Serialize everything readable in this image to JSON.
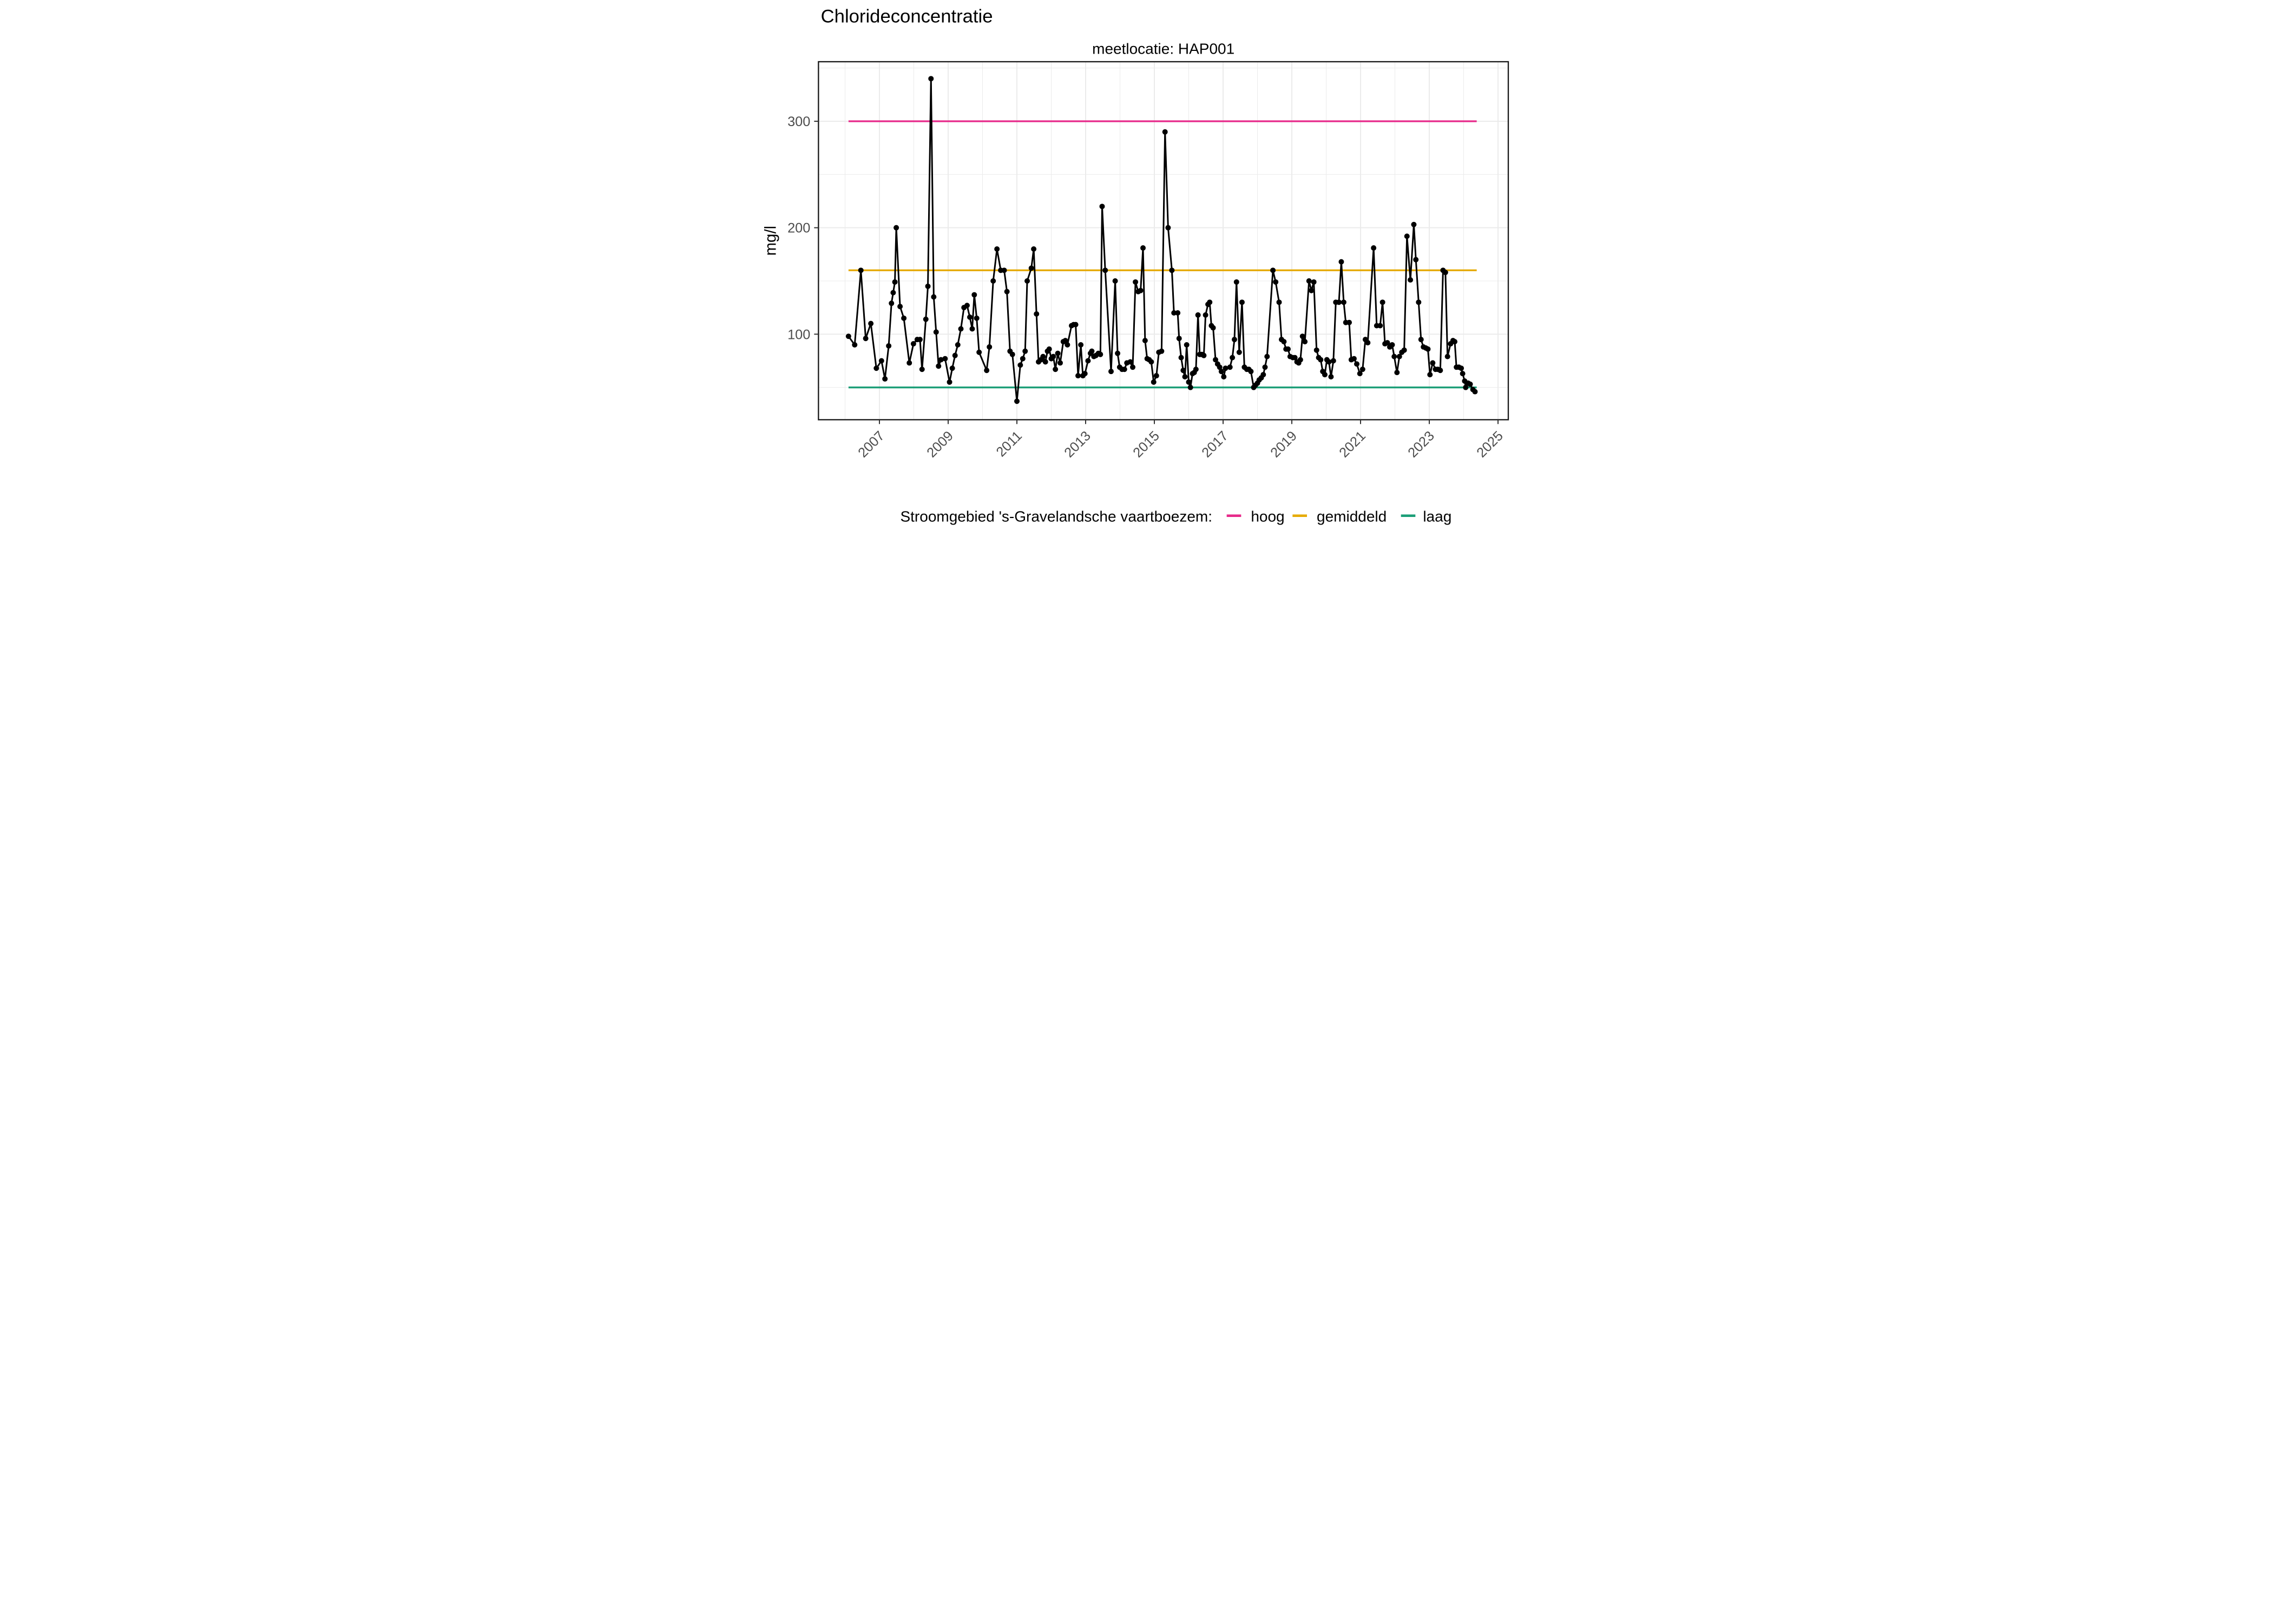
{
  "title": "Chlorideconcentratie",
  "subtitle": "meetlocatie: HAP001",
  "y_axis_label": "mg/l",
  "legend": {
    "title": "Stroomgebied 's-Gravelandsche vaartboezem:",
    "items": [
      {
        "label": "hoog",
        "color": "#E7298A",
        "value": 300
      },
      {
        "label": "gemiddeld",
        "color": "#E6AB02",
        "value": 160
      },
      {
        "label": "laag",
        "color": "#1B9E77",
        "value": 50
      }
    ]
  },
  "colors": {
    "point_line": "#000000",
    "grid": "#ebebeb",
    "tick_text": "#4d4d4d",
    "panel_border": "#1a1a1a",
    "background": "#ffffff"
  },
  "chart_data": {
    "type": "line",
    "title": "Chlorideconcentratie",
    "subtitle": "meetlocatie: HAP001",
    "xlabel": "",
    "ylabel": "mg/l",
    "xlim": [
      2005.2,
      2025.3
    ],
    "ylim": [
      22,
      356
    ],
    "x_ticks": [
      2007,
      2009,
      2011,
      2013,
      2015,
      2017,
      2019,
      2021,
      2023,
      2025
    ],
    "x_minor_gridlines": [
      2006,
      2008,
      2010,
      2012,
      2014,
      2016,
      2018,
      2020,
      2022,
      2024
    ],
    "y_ticks": [
      100,
      200,
      300
    ],
    "y_minor_gridlines": [
      50,
      150,
      250,
      350
    ],
    "grid": "on",
    "legend_position": "bottom",
    "reference_span": [
      2006.1,
      2024.38
    ],
    "reference_lines": [
      {
        "name": "hoog",
        "value": 300,
        "color": "#E7298A"
      },
      {
        "name": "gemiddeld",
        "value": 160,
        "color": "#E6AB02"
      },
      {
        "name": "laag",
        "value": 50,
        "color": "#1B9E77"
      }
    ],
    "series": [
      {
        "name": "chlorideconcentratie HAP001",
        "type": "line+points",
        "color": "#000000",
        "points": [
          [
            2006.1,
            98
          ],
          [
            2006.28,
            90
          ],
          [
            2006.46,
            160
          ],
          [
            2006.6,
            96
          ],
          [
            2006.75,
            110
          ],
          [
            2006.91,
            68
          ],
          [
            2007.06,
            75
          ],
          [
            2007.16,
            58
          ],
          [
            2007.27,
            89
          ],
          [
            2007.35,
            129
          ],
          [
            2007.4,
            139
          ],
          [
            2007.45,
            149
          ],
          [
            2007.49,
            200
          ],
          [
            2007.6,
            126
          ],
          [
            2007.71,
            115
          ],
          [
            2007.87,
            73
          ],
          [
            2007.99,
            91
          ],
          [
            2008.1,
            95
          ],
          [
            2008.18,
            95
          ],
          [
            2008.24,
            67
          ],
          [
            2008.35,
            114
          ],
          [
            2008.41,
            145
          ],
          [
            2008.5,
            340
          ],
          [
            2008.58,
            135
          ],
          [
            2008.65,
            102
          ],
          [
            2008.72,
            70
          ],
          [
            2008.79,
            76
          ],
          [
            2008.91,
            77
          ],
          [
            2009.04,
            55
          ],
          [
            2009.12,
            68
          ],
          [
            2009.2,
            80
          ],
          [
            2009.28,
            90
          ],
          [
            2009.37,
            105
          ],
          [
            2009.46,
            125
          ],
          [
            2009.55,
            127
          ],
          [
            2009.63,
            116
          ],
          [
            2009.7,
            105
          ],
          [
            2009.76,
            137
          ],
          [
            2009.83,
            115
          ],
          [
            2009.9,
            83
          ],
          [
            2010.12,
            66
          ],
          [
            2010.2,
            88
          ],
          [
            2010.31,
            150
          ],
          [
            2010.42,
            180
          ],
          [
            2010.53,
            160
          ],
          [
            2010.63,
            160
          ],
          [
            2010.71,
            140
          ],
          [
            2010.8,
            84
          ],
          [
            2010.87,
            81
          ],
          [
            2011.0,
            37
          ],
          [
            2011.1,
            71
          ],
          [
            2011.17,
            77
          ],
          [
            2011.24,
            84
          ],
          [
            2011.3,
            150
          ],
          [
            2011.42,
            162
          ],
          [
            2011.49,
            180
          ],
          [
            2011.57,
            119
          ],
          [
            2011.63,
            74
          ],
          [
            2011.7,
            76
          ],
          [
            2011.76,
            79
          ],
          [
            2011.83,
            74
          ],
          [
            2011.89,
            84
          ],
          [
            2011.94,
            86
          ],
          [
            2012.0,
            77
          ],
          [
            2012.06,
            79
          ],
          [
            2012.12,
            67
          ],
          [
            2012.19,
            82
          ],
          [
            2012.26,
            73
          ],
          [
            2012.35,
            93
          ],
          [
            2012.41,
            94
          ],
          [
            2012.47,
            90
          ],
          [
            2012.59,
            108
          ],
          [
            2012.65,
            109
          ],
          [
            2012.71,
            109
          ],
          [
            2012.78,
            61
          ],
          [
            2012.86,
            90
          ],
          [
            2012.92,
            61
          ],
          [
            2012.98,
            63
          ],
          [
            2013.07,
            75
          ],
          [
            2013.14,
            82
          ],
          [
            2013.18,
            84
          ],
          [
            2013.24,
            79
          ],
          [
            2013.3,
            80
          ],
          [
            2013.37,
            82
          ],
          [
            2013.43,
            81
          ],
          [
            2013.48,
            220
          ],
          [
            2013.57,
            160
          ],
          [
            2013.74,
            65
          ],
          [
            2013.86,
            150
          ],
          [
            2013.93,
            82
          ],
          [
            2013.99,
            69
          ],
          [
            2014.06,
            67
          ],
          [
            2014.13,
            67
          ],
          [
            2014.2,
            73
          ],
          [
            2014.3,
            74
          ],
          [
            2014.37,
            69
          ],
          [
            2014.45,
            149
          ],
          [
            2014.53,
            140
          ],
          [
            2014.6,
            141
          ],
          [
            2014.67,
            181
          ],
          [
            2014.73,
            94
          ],
          [
            2014.79,
            77
          ],
          [
            2014.85,
            76
          ],
          [
            2014.91,
            74
          ],
          [
            2014.98,
            55
          ],
          [
            2015.06,
            61
          ],
          [
            2015.13,
            83
          ],
          [
            2015.21,
            84
          ],
          [
            2015.31,
            290
          ],
          [
            2015.4,
            200
          ],
          [
            2015.51,
            160
          ],
          [
            2015.57,
            120
          ],
          [
            2015.68,
            120
          ],
          [
            2015.72,
            96
          ],
          [
            2015.78,
            78
          ],
          [
            2015.84,
            66
          ],
          [
            2015.89,
            60
          ],
          [
            2015.94,
            90
          ],
          [
            2016.0,
            55
          ],
          [
            2016.05,
            50
          ],
          [
            2016.11,
            63
          ],
          [
            2016.16,
            64
          ],
          [
            2016.21,
            67
          ],
          [
            2016.27,
            118
          ],
          [
            2016.32,
            81
          ],
          [
            2016.38,
            81
          ],
          [
            2016.44,
            80
          ],
          [
            2016.49,
            118
          ],
          [
            2016.56,
            128
          ],
          [
            2016.61,
            130
          ],
          [
            2016.66,
            108
          ],
          [
            2016.71,
            106
          ],
          [
            2016.78,
            76
          ],
          [
            2016.84,
            72
          ],
          [
            2016.9,
            69
          ],
          [
            2016.95,
            65
          ],
          [
            2017.02,
            60
          ],
          [
            2017.07,
            68
          ],
          [
            2017.2,
            69
          ],
          [
            2017.27,
            78
          ],
          [
            2017.33,
            95
          ],
          [
            2017.39,
            149
          ],
          [
            2017.47,
            83
          ],
          [
            2017.55,
            130
          ],
          [
            2017.62,
            69
          ],
          [
            2017.69,
            67
          ],
          [
            2017.75,
            67
          ],
          [
            2017.81,
            65
          ],
          [
            2017.89,
            50
          ],
          [
            2017.94,
            52
          ],
          [
            2018.0,
            54
          ],
          [
            2018.05,
            57
          ],
          [
            2018.11,
            59
          ],
          [
            2018.17,
            62
          ],
          [
            2018.22,
            69
          ],
          [
            2018.28,
            79
          ],
          [
            2018.45,
            160
          ],
          [
            2018.53,
            149
          ],
          [
            2018.63,
            130
          ],
          [
            2018.7,
            95
          ],
          [
            2018.77,
            93
          ],
          [
            2018.83,
            86
          ],
          [
            2018.89,
            86
          ],
          [
            2018.95,
            79
          ],
          [
            2019.03,
            78
          ],
          [
            2019.09,
            78
          ],
          [
            2019.15,
            74
          ],
          [
            2019.2,
            73
          ],
          [
            2019.25,
            76
          ],
          [
            2019.31,
            98
          ],
          [
            2019.38,
            93
          ],
          [
            2019.5,
            150
          ],
          [
            2019.57,
            141
          ],
          [
            2019.64,
            149
          ],
          [
            2019.72,
            85
          ],
          [
            2019.78,
            78
          ],
          [
            2019.84,
            76
          ],
          [
            2019.9,
            65
          ],
          [
            2019.96,
            62
          ],
          [
            2020.02,
            76
          ],
          [
            2020.08,
            74
          ],
          [
            2020.14,
            60
          ],
          [
            2020.21,
            75
          ],
          [
            2020.28,
            130
          ],
          [
            2020.37,
            130
          ],
          [
            2020.44,
            168
          ],
          [
            2020.51,
            130
          ],
          [
            2020.57,
            111
          ],
          [
            2020.67,
            111
          ],
          [
            2020.73,
            76
          ],
          [
            2020.81,
            77
          ],
          [
            2020.89,
            72
          ],
          [
            2020.98,
            63
          ],
          [
            2021.06,
            67
          ],
          [
            2021.14,
            95
          ],
          [
            2021.21,
            92
          ],
          [
            2021.38,
            181
          ],
          [
            2021.47,
            108
          ],
          [
            2021.57,
            108
          ],
          [
            2021.64,
            130
          ],
          [
            2021.71,
            91
          ],
          [
            2021.78,
            92
          ],
          [
            2021.85,
            88
          ],
          [
            2021.92,
            90
          ],
          [
            2021.98,
            79
          ],
          [
            2022.06,
            64
          ],
          [
            2022.13,
            79
          ],
          [
            2022.2,
            83
          ],
          [
            2022.27,
            85
          ],
          [
            2022.35,
            192
          ],
          [
            2022.45,
            151
          ],
          [
            2022.55,
            203
          ],
          [
            2022.61,
            170
          ],
          [
            2022.69,
            130
          ],
          [
            2022.76,
            95
          ],
          [
            2022.83,
            88
          ],
          [
            2022.9,
            87
          ],
          [
            2022.96,
            86
          ],
          [
            2023.02,
            62
          ],
          [
            2023.1,
            73
          ],
          [
            2023.18,
            67
          ],
          [
            2023.25,
            67
          ],
          [
            2023.32,
            66
          ],
          [
            2023.4,
            160
          ],
          [
            2023.47,
            158
          ],
          [
            2023.53,
            79
          ],
          [
            2023.62,
            91
          ],
          [
            2023.69,
            94
          ],
          [
            2023.74,
            93
          ],
          [
            2023.79,
            69
          ],
          [
            2023.86,
            69
          ],
          [
            2023.93,
            68
          ],
          [
            2023.97,
            63
          ],
          [
            2024.03,
            56
          ],
          [
            2024.06,
            50
          ],
          [
            2024.13,
            54
          ],
          [
            2024.19,
            53
          ],
          [
            2024.27,
            48
          ],
          [
            2024.33,
            46
          ]
        ]
      }
    ]
  }
}
